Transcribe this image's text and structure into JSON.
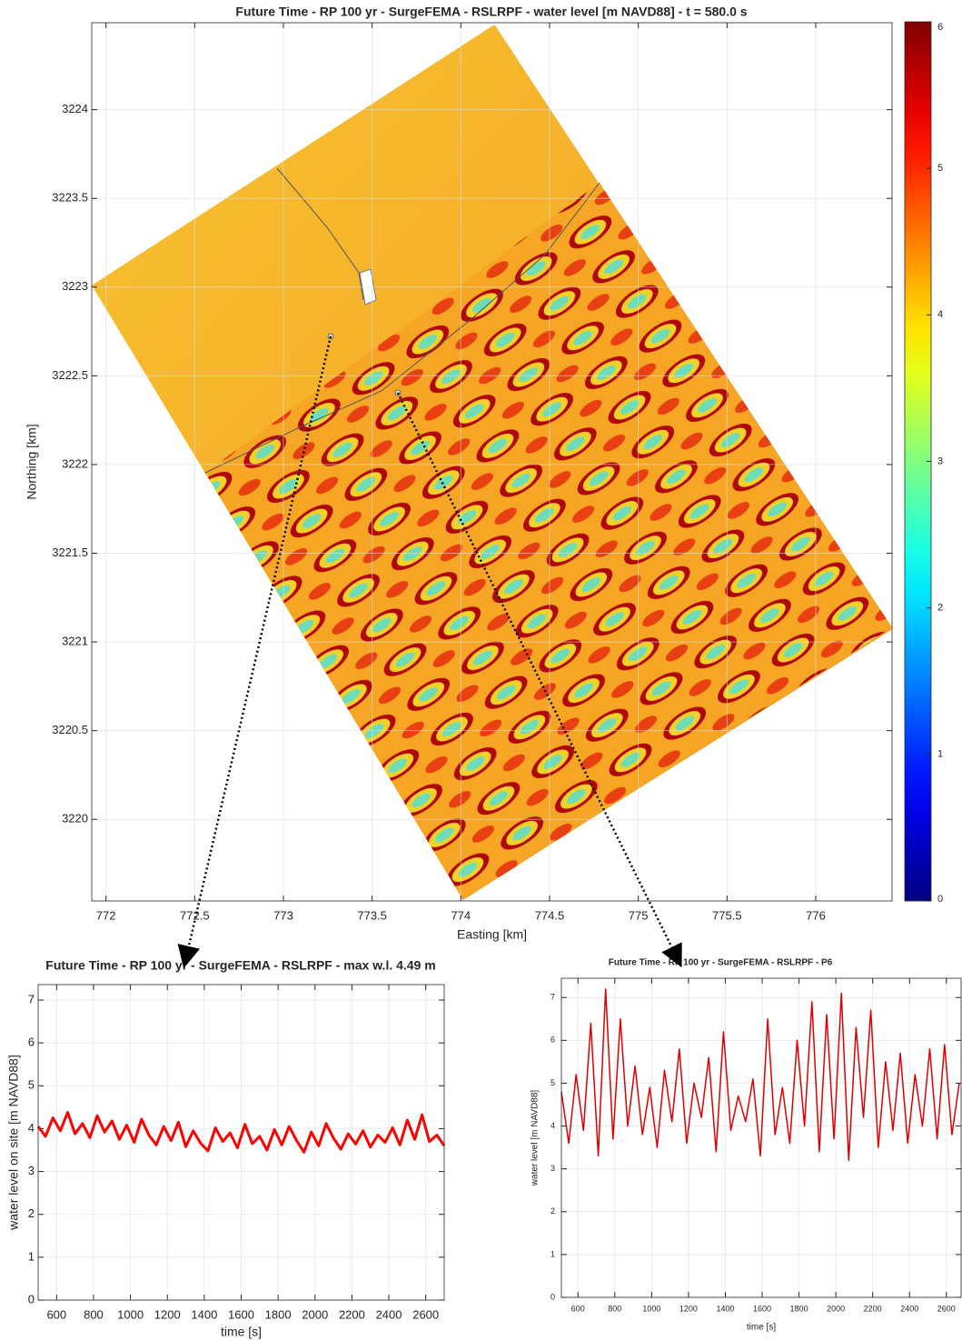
{
  "chart_data": [
    {
      "type": "map",
      "title": "Future Time - RP 100 yr - SurgeFEMA - RSLRPF - water level [m NAVD88] - t = 580.0 s",
      "xlabel": "Easting [km]",
      "ylabel": "Northing [km]",
      "xlim": [
        771.92,
        776.43
      ],
      "ylim": [
        3219.54,
        3224.49
      ],
      "xticks": [
        772,
        772.5,
        773,
        773.5,
        774,
        774.5,
        775,
        775.5,
        776
      ],
      "yticks": [
        3220,
        3220.5,
        3221,
        3221.5,
        3222,
        3222.5,
        3223,
        3223.5,
        3224
      ],
      "grid": true,
      "domain": {
        "x": [
          774.19,
          771.92,
          774.01,
          776.43
        ],
        "y": [
          3224.48,
          3223.01,
          3219.55,
          3221.07
        ]
      },
      "colormap": "jet",
      "clim": [
        0,
        6
      ],
      "cticks": [
        0,
        1,
        2,
        3,
        4,
        5,
        6
      ]
    },
    {
      "type": "line",
      "title": "Future Time - RP 100 yr - SurgeFEMA - RSLRPF - max w.l. 4.49 m",
      "xlabel": "time [s]",
      "ylabel": "water level on site [m NAVD88]",
      "xlim": [
        500,
        2700
      ],
      "ylim": [
        0,
        7.36
      ],
      "xticks": [
        600,
        800,
        1000,
        1200,
        1400,
        1600,
        1800,
        2000,
        2200,
        2400,
        2600
      ],
      "yticks": [
        0,
        1,
        2,
        3,
        4,
        5,
        6,
        7
      ],
      "grid": true,
      "color": "#ff0000",
      "x": [
        500,
        540,
        580,
        620,
        660,
        700,
        740,
        780,
        820,
        860,
        900,
        940,
        980,
        1020,
        1060,
        1100,
        1140,
        1180,
        1220,
        1260,
        1300,
        1340,
        1380,
        1420,
        1460,
        1500,
        1540,
        1580,
        1620,
        1660,
        1700,
        1740,
        1780,
        1820,
        1860,
        1900,
        1940,
        1980,
        2020,
        2060,
        2100,
        2140,
        2180,
        2220,
        2260,
        2300,
        2340,
        2380,
        2420,
        2460,
        2500,
        2540,
        2580,
        2620,
        2660,
        2700
      ],
      "values": [
        4.05,
        3.82,
        4.25,
        3.95,
        4.38,
        3.88,
        4.12,
        3.79,
        4.3,
        3.92,
        4.18,
        3.75,
        4.08,
        3.68,
        4.22,
        3.85,
        3.62,
        4.05,
        3.72,
        4.15,
        3.58,
        3.95,
        3.66,
        3.48,
        4.02,
        3.7,
        3.9,
        3.55,
        4.1,
        3.65,
        3.82,
        3.5,
        3.98,
        3.62,
        4.05,
        3.72,
        3.45,
        3.92,
        3.6,
        4.12,
        3.78,
        3.52,
        3.88,
        3.64,
        3.95,
        3.57,
        3.85,
        3.68,
        4.02,
        3.62,
        4.2,
        3.75,
        4.32,
        3.7,
        3.85,
        3.6
      ]
    },
    {
      "type": "line",
      "title": "Future Time - RP 100 yr - SurgeFEMA - RSLRPF - P6",
      "xlabel": "time [s]",
      "ylabel": "water level [m NAVD88]",
      "xlim": [
        510,
        2680
      ],
      "ylim": [
        0,
        7.45
      ],
      "xticks": [
        600,
        800,
        1000,
        1200,
        1400,
        1600,
        1800,
        2000,
        2200,
        2400,
        2600
      ],
      "yticks": [
        0,
        1,
        2,
        3,
        4,
        5,
        6,
        7
      ],
      "grid": true,
      "color": "#e00000",
      "x": [
        510,
        550,
        590,
        630,
        670,
        710,
        750,
        790,
        830,
        870,
        910,
        950,
        990,
        1030,
        1070,
        1110,
        1150,
        1190,
        1230,
        1270,
        1310,
        1350,
        1390,
        1430,
        1470,
        1510,
        1550,
        1590,
        1630,
        1670,
        1710,
        1750,
        1790,
        1830,
        1870,
        1910,
        1950,
        1990,
        2030,
        2070,
        2110,
        2150,
        2190,
        2230,
        2270,
        2310,
        2350,
        2390,
        2430,
        2470,
        2510,
        2550,
        2590,
        2630,
        2670
      ],
      "values": [
        4.8,
        3.6,
        5.2,
        3.9,
        6.4,
        3.3,
        7.2,
        3.7,
        6.5,
        4.0,
        5.4,
        3.8,
        4.9,
        3.5,
        5.3,
        4.1,
        5.8,
        3.6,
        5.0,
        4.2,
        5.6,
        3.4,
        6.2,
        3.9,
        4.7,
        4.1,
        5.1,
        3.3,
        6.5,
        3.8,
        4.9,
        3.6,
        6.0,
        4.0,
        6.9,
        3.4,
        6.6,
        3.7,
        7.1,
        3.2,
        6.3,
        4.2,
        6.7,
        3.5,
        5.5,
        3.9,
        5.7,
        3.6,
        5.2,
        4.0,
        5.8,
        3.7,
        5.9,
        3.8,
        5.0
      ]
    }
  ]
}
